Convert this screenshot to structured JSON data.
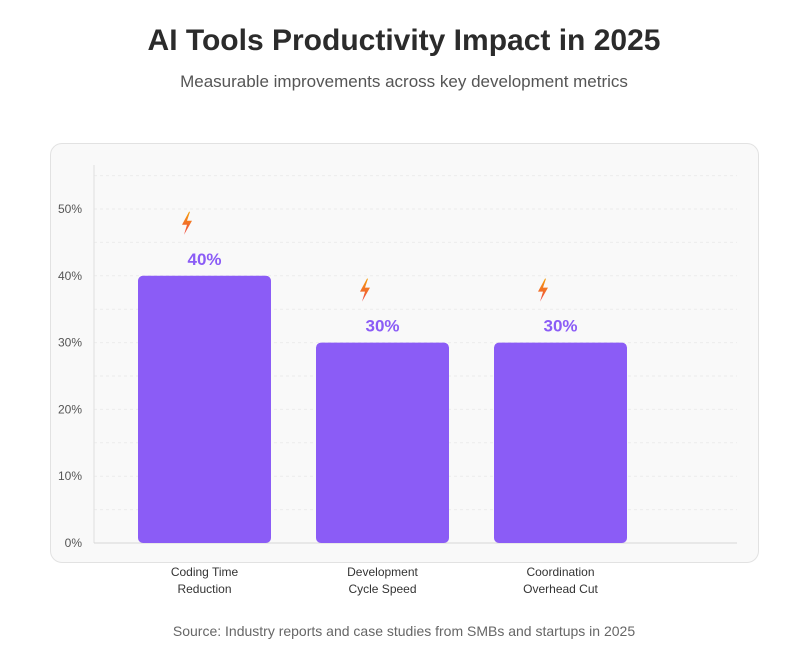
{
  "header": {
    "title": "AI Tools Productivity Impact in 2025",
    "subtitle": "Measurable improvements across key development metrics"
  },
  "footer": {
    "source": "Source: Industry reports and case studies from SMBs and startups in 2025"
  },
  "colors": {
    "bar": "#8b5cf6",
    "value_label": "#8b5cf6",
    "icon_top": "#f59e0b",
    "icon_bottom": "#ef4444"
  },
  "chart_data": {
    "type": "bar",
    "categories": [
      [
        "Coding Time",
        "Reduction"
      ],
      [
        "Development",
        "Cycle Speed"
      ],
      [
        "Coordination",
        "Overhead Cut"
      ]
    ],
    "values": [
      40,
      30,
      30
    ],
    "value_labels": [
      "40%",
      "30%",
      "30%"
    ],
    "y_ticks": [
      "0%",
      "10%",
      "20%",
      "30%",
      "40%",
      "50%"
    ],
    "ylim": [
      0,
      55
    ],
    "grid": true,
    "bar_icon": "lightning-bolt-icon"
  }
}
